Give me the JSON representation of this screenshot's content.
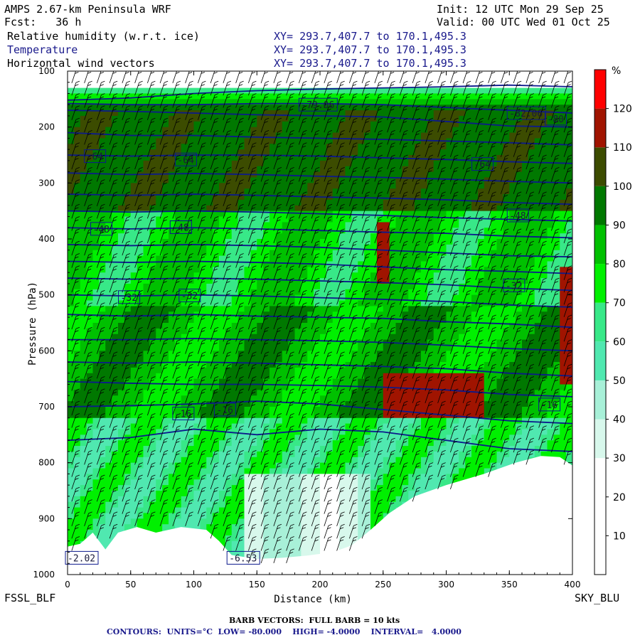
{
  "header": {
    "title": "AMPS 2.67-km Peninsula WRF",
    "init": "Init: 12 UTC Mon 29 Sep 25",
    "fcst": "Fcst:   36 h",
    "valid": "Valid: 00 UTC Wed 01 Oct 25",
    "fields": [
      {
        "label": "Relative humidity (w.r.t. ice)",
        "xy": "XY= 293.7,407.7 to 170.1,495.3",
        "color": "#000000"
      },
      {
        "label": "Temperature",
        "xy": "XY= 293.7,407.7 to 170.1,495.3",
        "color": "#1a1a8c"
      },
      {
        "label": "Horizontal wind vectors",
        "xy": "XY= 293.7,407.7 to 170.1,495.3",
        "color": "#000000"
      }
    ]
  },
  "footer": {
    "left_station": "FSSL_BLF",
    "right_station": "SKY_BLU",
    "barb_note": "BARB VECTORS:  FULL BARB = 10 kts",
    "contour_note": "CONTOURS:  UNITS=°C  LOW= -80.000    HIGH= -4.0000    INTERVAL=   4.0000"
  },
  "chart_data": {
    "type": "heatmap",
    "xlabel": "Distance (km)",
    "ylabel": "Pressure (hPa)",
    "xlim": [
      0,
      400
    ],
    "ylim": [
      1000,
      100
    ],
    "x_ticks": [
      0,
      50,
      100,
      150,
      200,
      250,
      300,
      350,
      400
    ],
    "y_ticks": [
      100,
      200,
      300,
      400,
      500,
      600,
      700,
      800,
      900,
      1000
    ],
    "colorbar": {
      "unit": "%",
      "ticks": [
        10,
        20,
        30,
        40,
        50,
        60,
        70,
        80,
        90,
        100,
        110,
        120
      ],
      "colors": [
        "#ffffff",
        "#ffffff",
        "#ffffff",
        "#d8f8ec",
        "#a8f0d8",
        "#50e8b0",
        "#38e888",
        "#00f000",
        "#00c000",
        "#007800",
        "#3c4c00",
        "#a01400",
        "#ff0000"
      ],
      "bounds": [
        0,
        10,
        20,
        30,
        40,
        50,
        60,
        70,
        80,
        90,
        100,
        110,
        120,
        130
      ]
    },
    "terrain_surface": [
      [
        0,
        950
      ],
      [
        10,
        945
      ],
      [
        20,
        925
      ],
      [
        30,
        955
      ],
      [
        40,
        925
      ],
      [
        55,
        915
      ],
      [
        70,
        925
      ],
      [
        90,
        915
      ],
      [
        110,
        920
      ],
      [
        120,
        940
      ],
      [
        130,
        965
      ],
      [
        150,
        972
      ],
      [
        170,
        970
      ],
      [
        190,
        966
      ],
      [
        210,
        960
      ],
      [
        225,
        948
      ],
      [
        240,
        920
      ],
      [
        255,
        890
      ],
      [
        275,
        860
      ],
      [
        300,
        840
      ],
      [
        330,
        820
      ],
      [
        355,
        800
      ],
      [
        375,
        788
      ],
      [
        390,
        790
      ],
      [
        400,
        805
      ]
    ],
    "temperature_contours": [
      {
        "value": -80,
        "p": [
          152,
          148,
          140,
          135,
          132,
          130,
          128,
          125,
          128
        ]
      },
      {
        "value": -76,
        "p": [
          158,
          160,
          160,
          158,
          158,
          160,
          165,
          170,
          175
        ]
      },
      {
        "value": -72,
        "p": [
          170,
          172,
          175,
          178,
          180,
          182,
          190,
          198,
          200
        ]
      },
      {
        "value": -68,
        "p": [
          210,
          215,
          215,
          218,
          220,
          222,
          225,
          228,
          232
        ]
      },
      {
        "value": -64,
        "p": [
          250,
          252,
          250,
          250,
          252,
          255,
          258,
          262,
          265
        ]
      },
      {
        "value": -60,
        "p": [
          282,
          285,
          283,
          285,
          288,
          290,
          293,
          297,
          300
        ]
      },
      {
        "value": -56,
        "p": [
          320,
          322,
          320,
          322,
          325,
          327,
          330,
          335,
          338
        ]
      },
      {
        "value": -52,
        "p": [
          350,
          352,
          350,
          352,
          355,
          358,
          362,
          365,
          368
        ]
      },
      {
        "value": -48,
        "p": [
          380,
          382,
          380,
          382,
          385,
          388,
          390,
          395,
          398
        ]
      },
      {
        "value": -44,
        "p": [
          410,
          412,
          410,
          412,
          415,
          420,
          425,
          430,
          432
        ]
      },
      {
        "value": -40,
        "p": [
          440,
          442,
          440,
          442,
          445,
          450,
          455,
          458,
          462
        ]
      },
      {
        "value": -36,
        "p": [
          470,
          472,
          470,
          472,
          475,
          478,
          482,
          488,
          492
        ]
      },
      {
        "value": -32,
        "p": [
          500,
          502,
          500,
          502,
          505,
          508,
          512,
          518,
          522
        ]
      },
      {
        "value": -28,
        "p": [
          535,
          538,
          535,
          538,
          540,
          542,
          548,
          552,
          558
        ]
      },
      {
        "value": -24,
        "p": [
          580,
          580,
          578,
          580,
          582,
          585,
          590,
          596,
          600
        ]
      },
      {
        "value": -20,
        "p": [
          620,
          622,
          620,
          622,
          625,
          628,
          632,
          640,
          645
        ]
      },
      {
        "value": -16,
        "p": [
          655,
          658,
          660,
          660,
          662,
          665,
          670,
          678,
          682
        ]
      },
      {
        "value": -12,
        "p": [
          700,
          698,
          695,
          690,
          695,
          705,
          715,
          725,
          730
        ]
      },
      {
        "value": -8,
        "p": [
          760,
          755,
          740,
          750,
          740,
          745,
          760,
          775,
          780
        ]
      }
    ],
    "contour_labels": [
      {
        "text": "-80",
        "x": 380,
        "p": 185
      },
      {
        "text": "-79.06",
        "x": 185,
        "p": 160
      },
      {
        "text": "-82.06",
        "x": 350,
        "p": 175
      },
      {
        "text": "-64",
        "x": 15,
        "p": 252
      },
      {
        "text": "-64",
        "x": 87,
        "p": 258
      },
      {
        "text": "-64",
        "x": 322,
        "p": 266
      },
      {
        "text": "-48",
        "x": 20,
        "p": 382
      },
      {
        "text": "-48",
        "x": 83,
        "p": 379
      },
      {
        "text": "-48",
        "x": 350,
        "p": 358
      },
      {
        "text": "-32",
        "x": 42,
        "p": 504
      },
      {
        "text": "-32",
        "x": 90,
        "p": 501
      },
      {
        "text": "-32",
        "x": 347,
        "p": 483
      },
      {
        "text": "-16",
        "x": 85,
        "p": 712
      },
      {
        "text": "-16",
        "x": 118,
        "p": 705
      },
      {
        "text": "-16",
        "x": 375,
        "p": 696
      },
      {
        "text": "-6.53",
        "x": 128,
        "p": 970
      },
      {
        "text": "-2.02",
        "x": 0,
        "p": 970
      }
    ]
  }
}
